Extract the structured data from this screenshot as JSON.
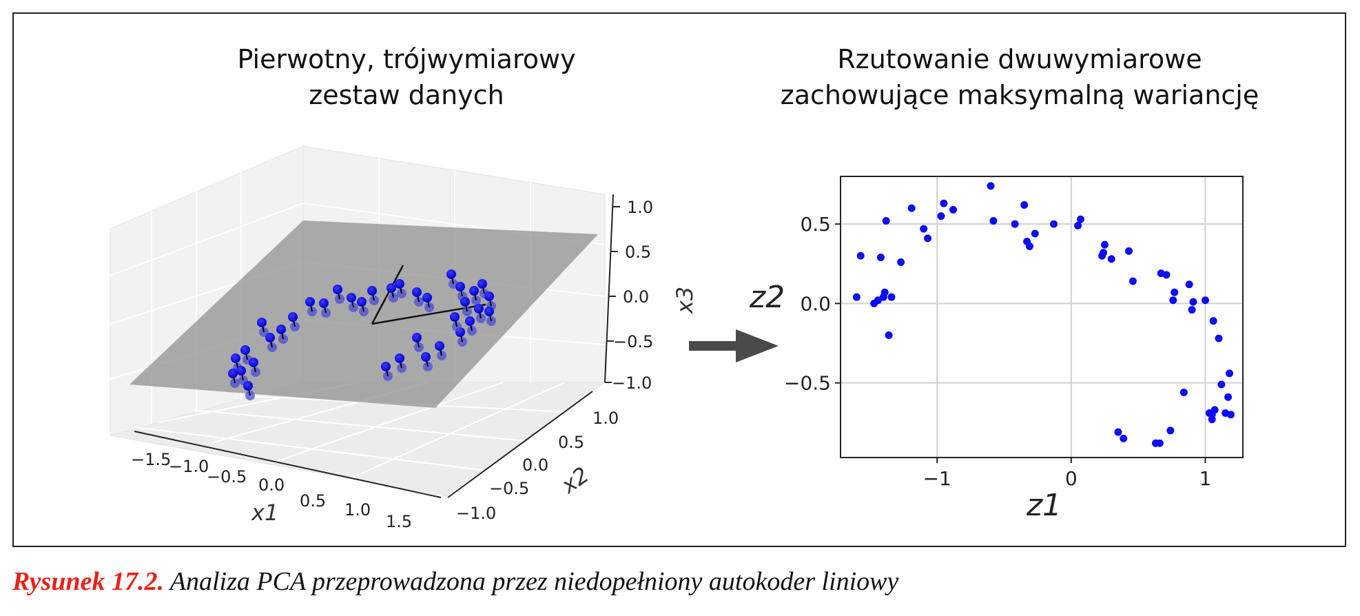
{
  "left_title": {
    "line1": "Pierwotny, trójwymiarowy",
    "line2": "zestaw danych"
  },
  "right_title": {
    "line1": "Rzutowanie dwuwymiarowe",
    "line2": "zachowujące maksymalną wariancję"
  },
  "caption": {
    "label": "Rysunek 17.2.",
    "text": " Analiza PCA przeprowadzona przez niedopełniony autokoder liniowy"
  },
  "colors": {
    "points": "#0b0bf5",
    "plane": "#8c8c8c",
    "arrow": "#4a4a4a",
    "caption_label": "#e5231b"
  },
  "arrow_icon": "right-arrow-icon",
  "chart_data": [
    {
      "type": "scatter3d",
      "title": "Pierwotny, trójwymiarowy zestaw danych",
      "xlabel": "x1",
      "ylabel": "x2",
      "zlabel": "x3",
      "x_ticks": [
        "−1.5",
        "−1.0",
        "−0.5",
        "0.0",
        "0.5",
        "1.0",
        "1.5"
      ],
      "y_ticks": [
        "−1.0",
        "−0.5",
        "0.0",
        "0.5",
        "1.0"
      ],
      "z_ticks": [
        "−1.0",
        "−0.5",
        "0.0",
        "0.5",
        "1.0"
      ],
      "xlim": [
        -1.8,
        1.8
      ],
      "ylim": [
        -1.3,
        1.3
      ],
      "zlim": [
        -1.0,
        1.0
      ],
      "grid": true,
      "elements": [
        "data points",
        "projection plane",
        "projections onto plane",
        "principal axes"
      ]
    },
    {
      "type": "scatter",
      "title": "Rzutowanie dwuwymiarowe zachowujące maksymalną wariancję",
      "xlabel": "z1",
      "ylabel": "z2",
      "xlim": [
        -1.72,
        1.28
      ],
      "ylim": [
        -0.97,
        0.8
      ],
      "x_ticks": [
        -1,
        0,
        1
      ],
      "y_ticks": [
        -0.5,
        0.0,
        0.5
      ],
      "x_tick_labels": [
        "−1",
        "0",
        "1"
      ],
      "y_tick_labels": [
        "−0.5",
        "0.0",
        "0.5"
      ],
      "grid": true,
      "points": [
        [
          -1.6,
          0.04
        ],
        [
          -1.57,
          0.3
        ],
        [
          -1.47,
          0.0
        ],
        [
          -1.44,
          0.02
        ],
        [
          -1.42,
          0.29
        ],
        [
          -1.4,
          0.04
        ],
        [
          -1.39,
          0.07
        ],
        [
          -1.38,
          0.52
        ],
        [
          -1.36,
          -0.2
        ],
        [
          -1.34,
          0.04
        ],
        [
          -1.27,
          0.26
        ],
        [
          -1.19,
          0.6
        ],
        [
          -1.1,
          0.47
        ],
        [
          -1.07,
          0.41
        ],
        [
          -0.97,
          0.55
        ],
        [
          -0.95,
          0.63
        ],
        [
          -0.88,
          0.59
        ],
        [
          -0.6,
          0.74
        ],
        [
          -0.58,
          0.52
        ],
        [
          -0.42,
          0.5
        ],
        [
          -0.35,
          0.62
        ],
        [
          -0.33,
          0.39
        ],
        [
          -0.31,
          0.36
        ],
        [
          -0.27,
          0.44
        ],
        [
          -0.13,
          0.5
        ],
        [
          0.05,
          0.49
        ],
        [
          0.07,
          0.53
        ],
        [
          0.23,
          0.3
        ],
        [
          0.24,
          0.32
        ],
        [
          0.25,
          0.37
        ],
        [
          0.3,
          0.28
        ],
        [
          0.35,
          -0.81
        ],
        [
          0.39,
          -0.85
        ],
        [
          0.43,
          0.33
        ],
        [
          0.46,
          0.14
        ],
        [
          0.63,
          -0.88
        ],
        [
          0.66,
          -0.88
        ],
        [
          0.67,
          0.19
        ],
        [
          0.71,
          0.18
        ],
        [
          0.74,
          -0.8
        ],
        [
          0.76,
          0.02
        ],
        [
          0.77,
          0.07
        ],
        [
          0.84,
          -0.56
        ],
        [
          0.88,
          0.12
        ],
        [
          0.9,
          -0.04
        ],
        [
          0.91,
          0.01
        ],
        [
          1.0,
          0.02
        ],
        [
          1.03,
          -0.69
        ],
        [
          1.05,
          -0.7
        ],
        [
          1.05,
          -0.73
        ],
        [
          1.06,
          -0.11
        ],
        [
          1.07,
          -0.67
        ],
        [
          1.1,
          -0.22
        ],
        [
          1.12,
          -0.51
        ],
        [
          1.15,
          -0.69
        ],
        [
          1.17,
          -0.59
        ],
        [
          1.18,
          -0.44
        ],
        [
          1.19,
          -0.7
        ]
      ]
    }
  ]
}
